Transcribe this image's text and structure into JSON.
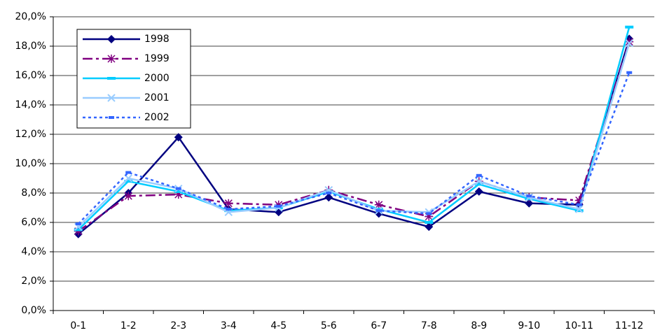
{
  "chart_data": {
    "type": "line",
    "categories": [
      "0-1",
      "1-2",
      "2-3",
      "3-4",
      "4-5",
      "5-6",
      "6-7",
      "7-8",
      "8-9",
      "9-10",
      "10-11",
      "11-12"
    ],
    "series": [
      {
        "name": "1998",
        "color": "#000080",
        "values": [
          5.2,
          8.0,
          11.8,
          6.9,
          6.7,
          7.7,
          6.6,
          5.7,
          8.1,
          7.3,
          7.2,
          18.5
        ]
      },
      {
        "name": "1999",
        "color": "#800080",
        "values": [
          5.4,
          7.8,
          7.9,
          7.3,
          7.2,
          8.2,
          7.2,
          6.4,
          8.8,
          7.7,
          7.5,
          18.3
        ]
      },
      {
        "name": "2000",
        "color": "#00ccff",
        "values": [
          5.5,
          8.8,
          8.1,
          6.8,
          7.0,
          8.1,
          6.9,
          6.0,
          8.6,
          7.6,
          6.8,
          19.3
        ]
      },
      {
        "name": "2001",
        "color": "#99ccff",
        "values": [
          5.7,
          9.0,
          8.3,
          6.7,
          7.0,
          8.2,
          6.8,
          6.7,
          8.8,
          7.7,
          6.9,
          18.2
        ]
      },
      {
        "name": "2002",
        "color": "#3366ff",
        "values": [
          5.9,
          9.4,
          8.3,
          6.9,
          7.1,
          8.0,
          6.8,
          6.6,
          9.2,
          7.8,
          7.2,
          16.2
        ]
      }
    ],
    "ylim": [
      0,
      20
    ],
    "yticks": [
      {
        "value": 0,
        "label": "0,0%"
      },
      {
        "value": 2,
        "label": "2,0%"
      },
      {
        "value": 4,
        "label": "4,0%"
      },
      {
        "value": 6,
        "label": "6,0%"
      },
      {
        "value": 8,
        "label": "8,0%"
      },
      {
        "value": 10,
        "label": "10,0%"
      },
      {
        "value": 12,
        "label": "12,0%"
      },
      {
        "value": 14,
        "label": "14,0%"
      },
      {
        "value": 16,
        "label": "16,0%"
      },
      {
        "value": 18,
        "label": "18,0%"
      },
      {
        "value": 20,
        "label": "20,0%"
      }
    ],
    "grid": true
  }
}
